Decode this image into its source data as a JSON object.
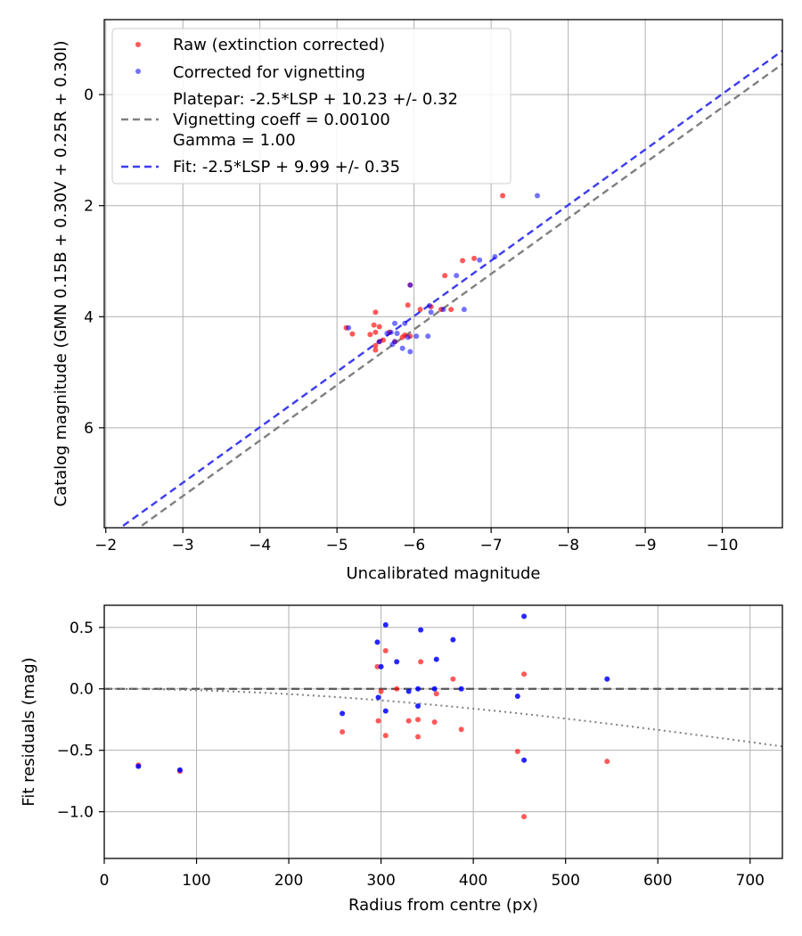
{
  "chart_data": [
    {
      "type": "scatter",
      "xlabel": "Uncalibrated magnitude",
      "ylabel": "Catalog magnitude (GMN 0.15B + 0.30V + 0.25R + 0.30I)",
      "xlim": [
        -1.98,
        -10.78
      ],
      "ylim": [
        7.8,
        -1.35
      ],
      "x_ticks": [
        -2,
        -3,
        -4,
        -5,
        -6,
        -7,
        -8,
        -9,
        -10
      ],
      "x_tick_labels": [
        "−2",
        "−3",
        "−4",
        "−5",
        "−6",
        "−7",
        "−8",
        "−9",
        "−10"
      ],
      "y_ticks": [
        0,
        2,
        4,
        6
      ],
      "y_tick_labels": [
        "0",
        "2",
        "4",
        "6"
      ],
      "grid": true,
      "legend": {
        "placement": "top-left",
        "entries": [
          {
            "label": "Raw (extinction corrected)",
            "marker": "dot",
            "color": "#ff0000"
          },
          {
            "label": "Corrected for vignetting",
            "marker": "dot",
            "color": "#0000ff"
          },
          {
            "label_lines": [
              "Platepar: -2.5*LSP + 10.23 +/- 0.32",
              "Vignetting coeff = 0.00100",
              "Gamma = 1.00"
            ],
            "marker": "dashed",
            "color": "#808080"
          },
          {
            "label": "Fit: -2.5*LSP + 9.99 +/- 0.35",
            "marker": "dashed",
            "color": "#3c3cf0"
          }
        ]
      },
      "lines": [
        {
          "name": "platepar",
          "intercept": 10.23,
          "slope": 1,
          "color": "#808080",
          "style": "dashed"
        },
        {
          "name": "fit",
          "intercept": 9.99,
          "slope": 1,
          "color": "#3c3cf0",
          "style": "dashed"
        }
      ],
      "series": [
        {
          "name": "Raw (extinction corrected)",
          "color": "#ff0000",
          "points": [
            [
              -7.15,
              1.82
            ],
            [
              -6.78,
              2.95
            ],
            [
              -6.63,
              2.99
            ],
            [
              -6.4,
              3.26
            ],
            [
              -5.95,
              3.43
            ],
            [
              -6.08,
              3.87
            ],
            [
              -5.92,
              3.79
            ],
            [
              -6.22,
              3.82
            ],
            [
              -6.35,
              3.87
            ],
            [
              -6.48,
              3.87
            ],
            [
              -5.5,
              3.92
            ],
            [
              -5.12,
              4.2
            ],
            [
              -5.2,
              4.31
            ],
            [
              -5.43,
              4.32
            ],
            [
              -5.48,
              4.15
            ],
            [
              -5.55,
              4.18
            ],
            [
              -5.5,
              4.28
            ],
            [
              -5.68,
              4.28
            ],
            [
              -5.75,
              4.45
            ],
            [
              -5.55,
              4.45
            ],
            [
              -5.5,
              4.52
            ],
            [
              -5.5,
              4.6
            ],
            [
              -5.6,
              4.42
            ],
            [
              -5.85,
              4.37
            ],
            [
              -5.95,
              4.35
            ],
            [
              -5.88,
              4.33
            ]
          ]
        },
        {
          "name": "Corrected for vignetting",
          "color": "#0000ff",
          "points": [
            [
              -7.6,
              1.82
            ],
            [
              -7.05,
              2.92
            ],
            [
              -6.85,
              2.98
            ],
            [
              -6.55,
              3.26
            ],
            [
              -5.95,
              3.43
            ],
            [
              -6.2,
              3.8
            ],
            [
              -6.38,
              3.87
            ],
            [
              -6.65,
              3.87
            ],
            [
              -6.22,
              3.92
            ],
            [
              -5.15,
              4.2
            ],
            [
              -5.75,
              4.12
            ],
            [
              -5.88,
              4.12
            ],
            [
              -5.65,
              4.3
            ],
            [
              -5.7,
              4.28
            ],
            [
              -5.78,
              4.3
            ],
            [
              -6.03,
              4.35
            ],
            [
              -6.18,
              4.35
            ],
            [
              -5.92,
              4.37
            ],
            [
              -5.75,
              4.45
            ],
            [
              -5.72,
              4.5
            ],
            [
              -5.85,
              4.57
            ],
            [
              -5.95,
              4.63
            ],
            [
              -5.55,
              4.45
            ]
          ]
        }
      ]
    },
    {
      "type": "scatter",
      "xlabel": "Radius from centre (px)",
      "ylabel": "Fit residuals (mag)",
      "xlim": [
        0,
        735
      ],
      "ylim": [
        -1.38,
        0.68
      ],
      "x_ticks": [
        0,
        100,
        200,
        300,
        400,
        500,
        600,
        700
      ],
      "x_tick_labels": [
        "0",
        "100",
        "200",
        "300",
        "400",
        "500",
        "600",
        "700"
      ],
      "y_ticks": [
        0.5,
        0.0,
        -0.5,
        -1.0
      ],
      "y_tick_labels": [
        "0.5",
        "0.0",
        "−0.5",
        "−1.0"
      ],
      "grid": true,
      "lines": [
        {
          "name": "zero",
          "y": 0,
          "color": "#555555",
          "style": "dashed"
        },
        {
          "name": "vignetting-curve",
          "form": "-2.5*log10(1 + (coeff*r)^2)",
          "coeff": 0.001,
          "color": "#808080",
          "style": "dotted"
        }
      ],
      "series": [
        {
          "name": "Raw (extinction corrected)",
          "color": "#ff0000",
          "points": [
            [
              37,
              -0.62
            ],
            [
              82,
              -0.67
            ],
            [
              258,
              -0.35
            ],
            [
              296,
              0.18
            ],
            [
              297,
              -0.26
            ],
            [
              300,
              -0.02
            ],
            [
              305,
              0.31
            ],
            [
              305,
              -0.38
            ],
            [
              317,
              0.0
            ],
            [
              330,
              -0.26
            ],
            [
              340,
              -0.25
            ],
            [
              340,
              -0.39
            ],
            [
              343,
              0.22
            ],
            [
              358,
              -0.27
            ],
            [
              360,
              -0.04
            ],
            [
              378,
              0.08
            ],
            [
              387,
              -0.33
            ],
            [
              448,
              -0.51
            ],
            [
              455,
              0.12
            ],
            [
              455,
              -1.04
            ],
            [
              545,
              -0.59
            ]
          ]
        },
        {
          "name": "Corrected for vignetting",
          "color": "#0000ff",
          "points": [
            [
              37,
              -0.63
            ],
            [
              82,
              -0.66
            ],
            [
              258,
              -0.2
            ],
            [
              296,
              0.38
            ],
            [
              297,
              -0.07
            ],
            [
              300,
              0.18
            ],
            [
              305,
              -0.18
            ],
            [
              305,
              0.52
            ],
            [
              317,
              0.22
            ],
            [
              330,
              -0.02
            ],
            [
              340,
              -0.14
            ],
            [
              340,
              0.0
            ],
            [
              343,
              0.48
            ],
            [
              358,
              0.0
            ],
            [
              360,
              0.24
            ],
            [
              378,
              0.4
            ],
            [
              387,
              0.0
            ],
            [
              448,
              -0.06
            ],
            [
              455,
              0.59
            ],
            [
              455,
              -0.58
            ],
            [
              545,
              0.08
            ]
          ]
        }
      ]
    }
  ]
}
